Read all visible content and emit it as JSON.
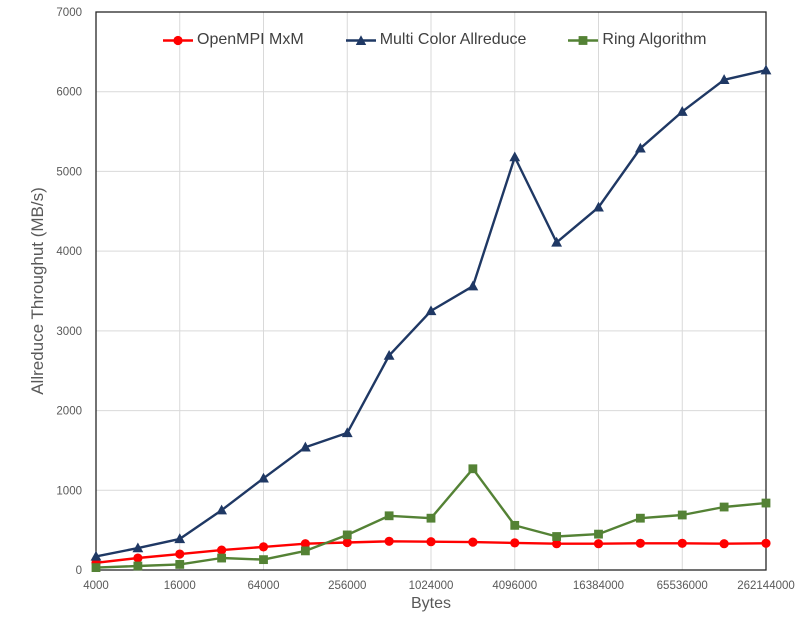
{
  "chart_data": {
    "type": "line",
    "title": "",
    "xlabel": "Bytes",
    "ylabel": "Allreduce Throughut (MB/s)",
    "x_scale": "log2",
    "ylim": [
      0,
      7000
    ],
    "grid": true,
    "legend_position": "top-center-inside",
    "x": [
      4000,
      8000,
      16000,
      32000,
      64000,
      128000,
      256000,
      512000,
      1024000,
      2048000,
      4096000,
      8192000,
      16384000,
      32768000,
      65536000,
      131072000,
      262144000
    ],
    "x_tick_values": [
      4000,
      16000,
      64000,
      256000,
      1024000,
      4096000,
      16384000,
      65536000,
      262144000
    ],
    "x_tick_labels": [
      "4000",
      "16000",
      "64000",
      "256000",
      "1024000",
      "4096000",
      "16384000",
      "65536000",
      "262144000"
    ],
    "y_ticks": [
      0,
      1000,
      2000,
      3000,
      4000,
      5000,
      6000,
      7000
    ],
    "y_tick_labels": [
      "0",
      "1000",
      "2000",
      "3000",
      "4000",
      "5000",
      "6000",
      "7000"
    ],
    "series": [
      {
        "name": "OpenMPI MxM",
        "color": "#FF0000",
        "marker": "circle",
        "values": [
          90,
          150,
          200,
          250,
          290,
          330,
          345,
          360,
          355,
          350,
          340,
          330,
          330,
          335,
          335,
          330,
          335
        ]
      },
      {
        "name": "Multi Color Allreduce",
        "color": "#1F3864",
        "marker": "triangle",
        "values": [
          170,
          275,
          390,
          750,
          1150,
          1540,
          1720,
          2690,
          3250,
          3560,
          5180,
          4110,
          4550,
          5290,
          5750,
          6150,
          6270
        ]
      },
      {
        "name": "Ring Algorithm",
        "color": "#548235",
        "marker": "square",
        "values": [
          30,
          50,
          70,
          150,
          130,
          240,
          440,
          680,
          650,
          1270,
          560,
          420,
          450,
          650,
          690,
          790,
          840
        ]
      }
    ],
    "colors": {
      "grid": "#D9D9D9",
      "axis_border": "#262626",
      "tick_text": "#595959",
      "legend_text": "#404040"
    }
  }
}
